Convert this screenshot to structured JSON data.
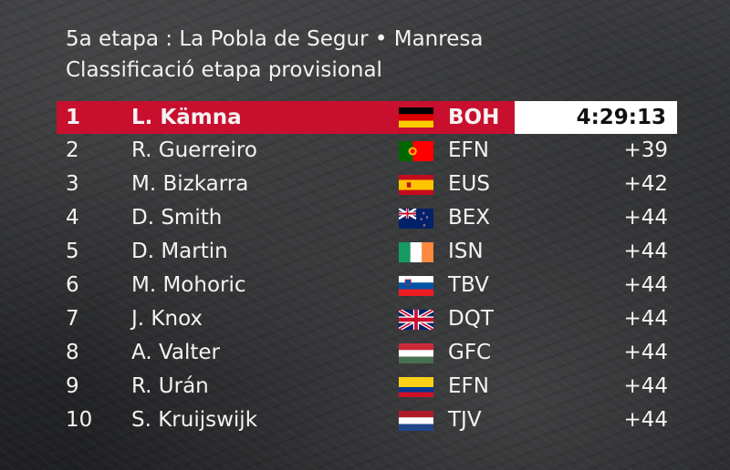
{
  "header": {
    "stage": "5a etapa : La Pobla de Segur • Manresa",
    "classification": "Classificació etapa provisional"
  },
  "colors": {
    "leader_bar": "#c8102e",
    "time_box": "#ffffff"
  },
  "results": [
    {
      "pos": "1",
      "name": "L. Kämna",
      "flag": "germany-flag",
      "team": "BOH",
      "gap": "4:29:13"
    },
    {
      "pos": "2",
      "name": "R. Guerreiro",
      "flag": "portugal-flag",
      "team": "EFN",
      "gap": "+39"
    },
    {
      "pos": "3",
      "name": "M. Bizkarra",
      "flag": "spain-flag",
      "team": "EUS",
      "gap": "+42"
    },
    {
      "pos": "4",
      "name": "D. Smith",
      "flag": "new-zealand-flag",
      "team": "BEX",
      "gap": "+44"
    },
    {
      "pos": "5",
      "name": "D. Martin",
      "flag": "ireland-flag",
      "team": "ISN",
      "gap": "+44"
    },
    {
      "pos": "6",
      "name": "M. Mohoric",
      "flag": "slovenia-flag",
      "team": "TBV",
      "gap": "+44"
    },
    {
      "pos": "7",
      "name": "J. Knox",
      "flag": "uk-flag",
      "team": "DQT",
      "gap": "+44"
    },
    {
      "pos": "8",
      "name": "A. Valter",
      "flag": "hungary-flag",
      "team": "GFC",
      "gap": "+44"
    },
    {
      "pos": "9",
      "name": "R. Urán",
      "flag": "colombia-flag",
      "team": "EFN",
      "gap": "+44"
    },
    {
      "pos": "10",
      "name": "S. Kruijswijk",
      "flag": "netherlands-flag",
      "team": "TJV",
      "gap": "+44"
    }
  ]
}
